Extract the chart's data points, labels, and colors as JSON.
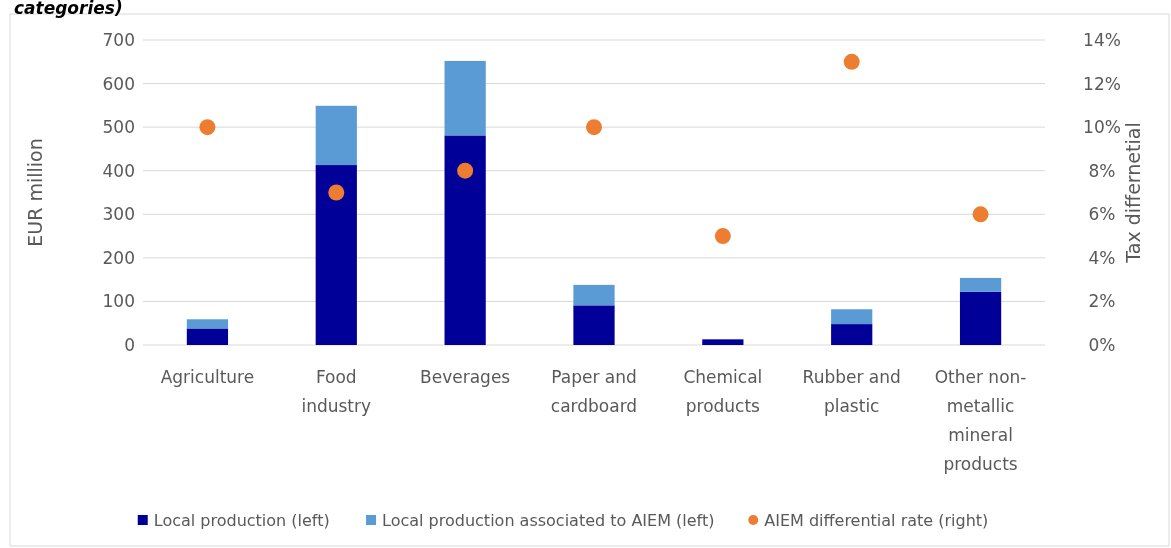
{
  "chart_data": {
    "type": "bar",
    "title": "categories)",
    "ylabel": "EUR million",
    "y2label": "Tax differnetial",
    "categories": [
      "Agriculture",
      "Food industry",
      "Beverages",
      "Paper and cardboard",
      "Chemical products",
      "Rubber and plastic",
      "Other non-metallic mineral products"
    ],
    "stacked": true,
    "grid": "y",
    "legend": "bottom",
    "ylim": [
      0,
      700
    ],
    "yticks": [
      0,
      100,
      200,
      300,
      400,
      500,
      600,
      700
    ],
    "y2lim": [
      0,
      14
    ],
    "y2ticks": [
      {
        "value": 0,
        "label": "0%"
      },
      {
        "value": 2,
        "label": "2%"
      },
      {
        "value": 4,
        "label": "4%"
      },
      {
        "value": 6,
        "label": "6%"
      },
      {
        "value": 8,
        "label": "8%"
      },
      {
        "value": 10,
        "label": "10%"
      },
      {
        "value": 12,
        "label": "12%"
      },
      {
        "value": 14,
        "label": "14%"
      }
    ],
    "series": [
      {
        "name": "Local production (left)",
        "color": "#000099",
        "values": [
          38,
          413,
          481,
          91,
          13,
          48,
          122
        ]
      },
      {
        "name": "Local production associated to AIEM (left)",
        "color": "#5b9bd5",
        "values": [
          21,
          136,
          171,
          47,
          0,
          34,
          32
        ]
      },
      {
        "name": "AIEM differential rate (right)",
        "type": "scatter",
        "axis": "y2",
        "marker": "circle",
        "color": "#ed7d31",
        "values": [
          10,
          7,
          8,
          10,
          5,
          13,
          6
        ]
      }
    ]
  }
}
